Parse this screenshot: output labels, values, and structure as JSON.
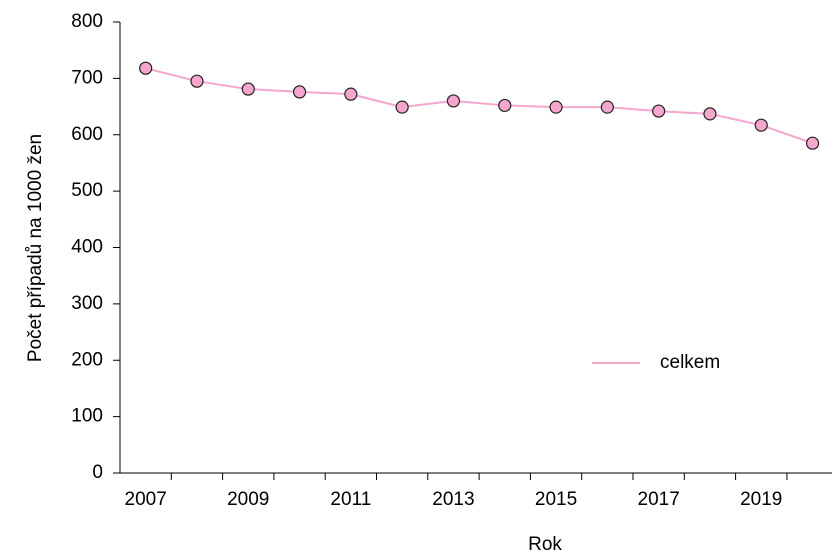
{
  "chart_data": {
    "type": "line",
    "xlabel": "Rok",
    "ylabel": "Počet případů na 1000 žen",
    "categories": [
      "2007",
      null,
      "2009",
      null,
      "2011",
      null,
      "2013",
      null,
      "2015",
      null,
      "2017",
      null,
      "2019",
      null
    ],
    "series": [
      {
        "name": "celkem",
        "color": "#f4a6cc",
        "values": [
          718,
          695,
          681,
          676,
          672,
          649,
          660,
          652,
          649,
          649,
          642,
          637,
          617,
          585
        ]
      }
    ],
    "ylim": [
      0,
      800
    ],
    "yticks": [
      0,
      100,
      200,
      300,
      400,
      500,
      600,
      700,
      800
    ],
    "grid": false,
    "legend": "center right"
  }
}
